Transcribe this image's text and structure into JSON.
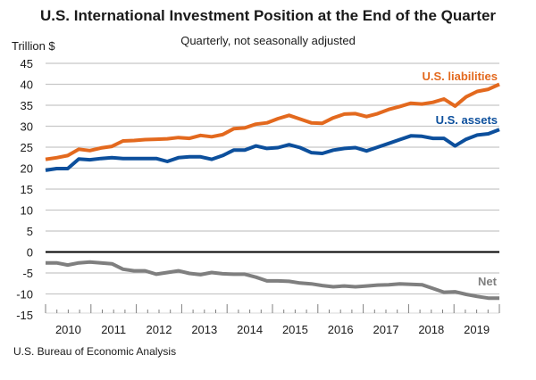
{
  "chart_data": {
    "type": "line",
    "title": "U.S. International Investment Position at the End of the Quarter",
    "subtitle": "Quarterly, not seasonally adjusted",
    "ylabel": "Trillion $",
    "xlabel": "",
    "source": "U.S. Bureau of Economic Analysis",
    "ylim": [
      -15,
      45
    ],
    "yticks": [
      45,
      40,
      35,
      30,
      25,
      20,
      15,
      10,
      5,
      0,
      -5,
      -10,
      -15
    ],
    "ytick_labels": [
      "45",
      "40",
      "35",
      "30",
      "25",
      "20",
      "15",
      "10",
      "5",
      "0",
      "-5",
      "-10",
      "-15"
    ],
    "x_categories": [
      "2010",
      "2011",
      "2012",
      "2013",
      "2014",
      "2015",
      "2016",
      "2017",
      "2018",
      "2019"
    ],
    "grid": true,
    "legend": "inline labels near line ends (top-right)",
    "colors": {
      "liabilities": "#E3691E",
      "assets": "#0C4F9C",
      "net": "#7F7F7F",
      "grid": "#C8C8C8",
      "zero": "#000000"
    },
    "series": [
      {
        "name": "U.S. liabilities",
        "color": "#E3691E",
        "values": [
          22.1,
          22.5,
          23.0,
          24.5,
          24.2,
          24.8,
          25.2,
          26.5,
          26.6,
          26.8,
          26.9,
          27.0,
          27.3,
          27.1,
          27.8,
          27.5,
          28.0,
          29.4,
          29.6,
          30.5,
          30.8,
          31.8,
          32.6,
          31.7,
          30.8,
          30.7,
          32.0,
          32.9,
          33.0,
          32.3,
          33.0,
          34.0,
          34.7,
          35.5,
          35.3,
          35.7,
          36.5,
          34.8,
          37.0,
          38.3,
          38.8,
          40.0
        ]
      },
      {
        "name": "U.S. assets",
        "color": "#0C4F9C",
        "values": [
          19.5,
          19.9,
          19.9,
          22.2,
          22.0,
          22.3,
          22.5,
          22.3,
          22.3,
          22.3,
          22.3,
          21.6,
          22.5,
          22.7,
          22.7,
          22.1,
          23.0,
          24.3,
          24.3,
          25.3,
          24.7,
          24.9,
          25.6,
          24.9,
          23.7,
          23.5,
          24.3,
          24.7,
          24.9,
          24.1,
          25.0,
          25.9,
          26.8,
          27.7,
          27.6,
          27.1,
          27.1,
          25.3,
          26.9,
          27.9,
          28.2,
          29.2
        ]
      },
      {
        "name": "Net",
        "color": "#7F7F7F",
        "values": [
          -2.6,
          -2.6,
          -3.1,
          -2.6,
          -2.4,
          -2.6,
          -2.8,
          -4.1,
          -4.5,
          -4.5,
          -5.3,
          -4.9,
          -4.5,
          -5.1,
          -5.4,
          -4.9,
          -5.2,
          -5.3,
          -5.3,
          -6.0,
          -6.9,
          -6.9,
          -7.0,
          -7.4,
          -7.6,
          -8.0,
          -8.3,
          -8.1,
          -8.3,
          -8.1,
          -7.9,
          -7.8,
          -7.6,
          -7.7,
          -7.8,
          -8.7,
          -9.6,
          -9.5,
          -10.1,
          -10.6,
          -11.0,
          -11.0
        ]
      }
    ]
  }
}
